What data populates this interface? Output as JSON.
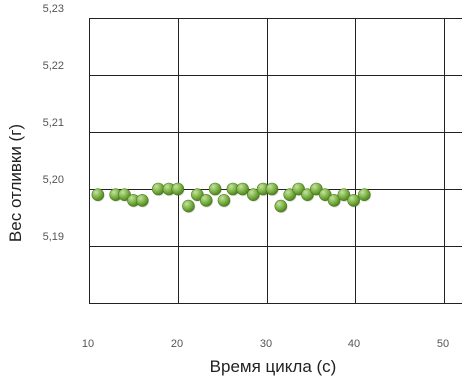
{
  "chart_data": {
    "type": "scatter",
    "title": "",
    "xlabel": "Время цикла (с)",
    "ylabel": "Вес отливки (г)",
    "xlim": [
      10,
      52
    ],
    "ylim": [
      5.18,
      5.23
    ],
    "x_ticks": [
      10,
      20,
      30,
      40,
      50
    ],
    "x_tick_labels": [
      "10",
      "20",
      "30",
      "40",
      "50"
    ],
    "y_ticks": [
      5.19,
      5.2,
      5.21,
      5.22,
      5.23
    ],
    "y_tick_labels": [
      "5,19",
      "5,20",
      "5,21",
      "5,22",
      "5,23"
    ],
    "grid": true,
    "marker_color": "#7cb342",
    "marker_highlight": "#c5e1a5",
    "marker_shadow": "#4a7a1f",
    "series": [
      {
        "x": [
          11,
          13,
          14,
          15,
          16,
          17.8,
          19,
          20,
          21.2,
          22.2,
          23.2,
          24.2,
          25.2,
          26.2,
          27.3,
          28.5,
          29.6,
          30.6,
          31.6,
          32.6,
          33.6,
          34.6,
          35.6,
          36.6,
          37.6,
          38.7,
          39.8,
          41
        ],
        "y": [
          5.199,
          5.199,
          5.199,
          5.198,
          5.198,
          5.2,
          5.2,
          5.2,
          5.197,
          5.199,
          5.198,
          5.2,
          5.198,
          5.2,
          5.2,
          5.199,
          5.2,
          5.2,
          5.197,
          5.199,
          5.2,
          5.199,
          5.2,
          5.199,
          5.198,
          5.199,
          5.198,
          5.199
        ]
      }
    ]
  }
}
